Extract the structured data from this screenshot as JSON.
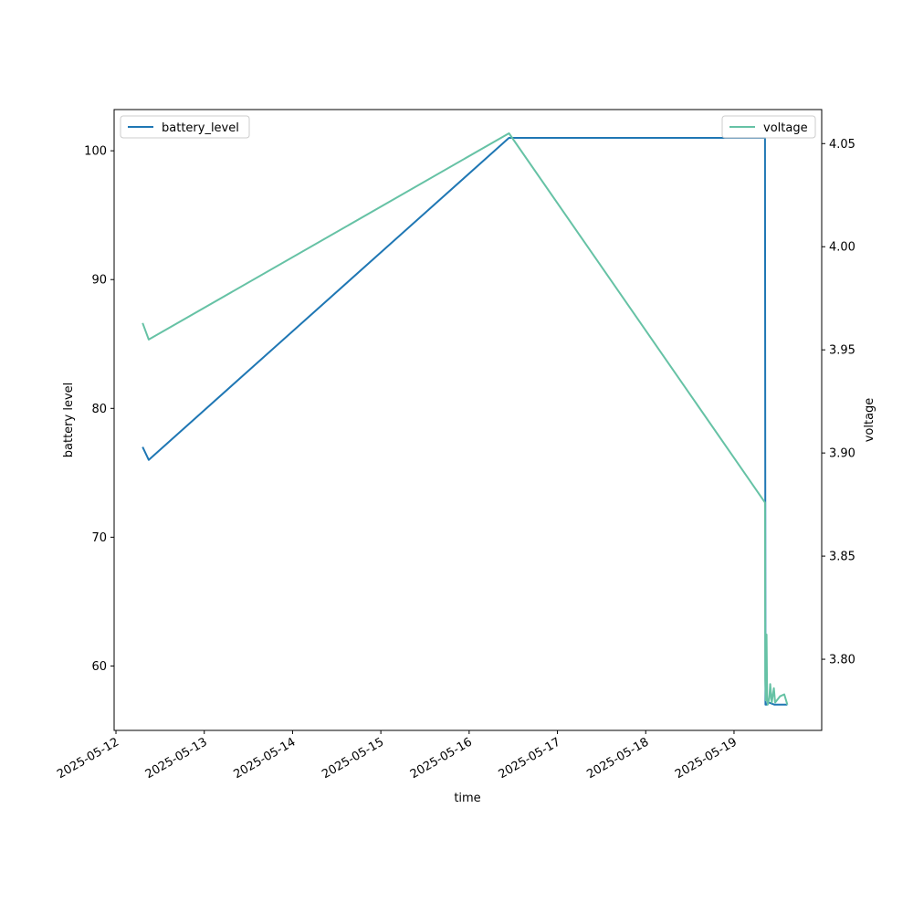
{
  "chart_data": {
    "type": "line",
    "xlabel": "time",
    "ylabel_left": "battery level",
    "ylabel_right": "voltage",
    "x_tick_labels": [
      "2025-05-12",
      "2025-05-13",
      "2025-05-14",
      "2025-05-15",
      "2025-05-16",
      "2025-05-17",
      "2025-05-18",
      "2025-05-19"
    ],
    "y_left_ticks": [
      60,
      70,
      80,
      90,
      100
    ],
    "y_right_ticks": [
      "3.80",
      "3.85",
      "3.90",
      "3.95",
      "4.00",
      "4.05"
    ],
    "xlim": [
      "2025-05-11 23:30",
      "2025-05-19 23:50"
    ],
    "ylim_left": [
      55,
      103.2
    ],
    "ylim_right": [
      3.7655,
      4.0665
    ],
    "grid": false,
    "series": [
      {
        "name": "battery_level",
        "axis": "left",
        "color": "#1f77b4",
        "legend_position": "upper left",
        "points": [
          [
            "2025-05-12 07:15",
            77
          ],
          [
            "2025-05-12 08:55",
            76
          ],
          [
            "2025-05-16 10:50",
            101
          ],
          [
            "2025-05-19 08:25",
            101
          ],
          [
            "2025-05-19 08:33",
            57
          ],
          [
            "2025-05-19 09:00",
            57
          ],
          [
            "2025-05-19 09:10",
            57.2
          ],
          [
            "2025-05-19 11:00",
            57
          ],
          [
            "2025-05-19 14:30",
            57
          ]
        ]
      },
      {
        "name": "voltage",
        "axis": "right",
        "color": "#66c2a5",
        "legend_position": "upper right",
        "points": [
          [
            "2025-05-12 07:15",
            3.963
          ],
          [
            "2025-05-12 08:55",
            3.955
          ],
          [
            "2025-05-16 10:50",
            4.055
          ],
          [
            "2025-05-19 08:25",
            3.876
          ],
          [
            "2025-05-19 08:30",
            3.79
          ],
          [
            "2025-05-19 08:40",
            3.78
          ],
          [
            "2025-05-19 08:50",
            3.812
          ],
          [
            "2025-05-19 09:00",
            3.783
          ],
          [
            "2025-05-19 09:10",
            3.778
          ],
          [
            "2025-05-19 09:35",
            3.781
          ],
          [
            "2025-05-19 09:50",
            3.788
          ],
          [
            "2025-05-19 10:15",
            3.779
          ],
          [
            "2025-05-19 10:50",
            3.786
          ],
          [
            "2025-05-19 11:10",
            3.779
          ],
          [
            "2025-05-19 12:30",
            3.782
          ],
          [
            "2025-05-19 13:40",
            3.783
          ],
          [
            "2025-05-19 14:30",
            3.778
          ]
        ]
      }
    ]
  }
}
